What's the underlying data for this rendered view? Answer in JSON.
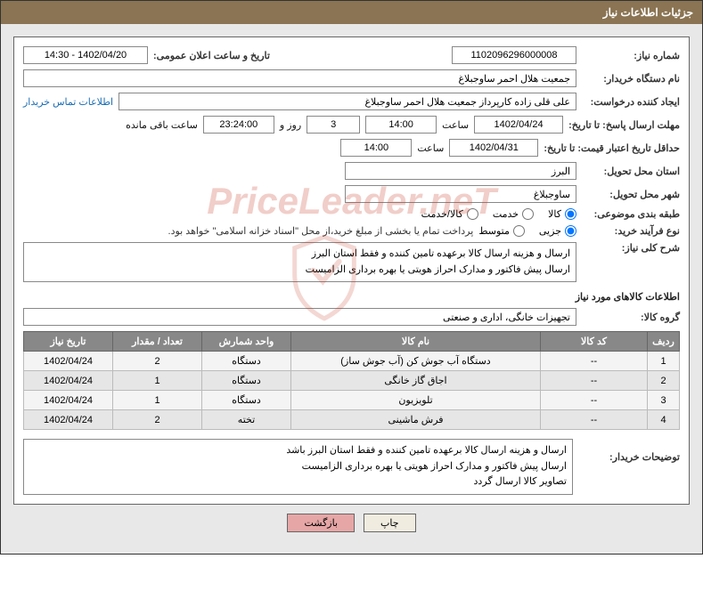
{
  "header": {
    "title": "جزئیات اطلاعات نیاز"
  },
  "need_number": {
    "label": "شماره نیاز:",
    "value": "1102096296000008"
  },
  "announce": {
    "label": "تاریخ و ساعت اعلان عمومی:",
    "value": "1402/04/20 - 14:30"
  },
  "buyer_org": {
    "label": "نام دستگاه خریدار:",
    "value": "جمعیت هلال احمر ساوجبلاغ"
  },
  "requester": {
    "label": "ایجاد کننده درخواست:",
    "value": "علی قلی زاده کارپرداز جمعیت هلال احمر ساوجبلاغ",
    "contact": "اطلاعات تماس خریدار"
  },
  "deadline": {
    "label": "مهلت ارسال پاسخ: تا تاریخ:",
    "date": "1402/04/24",
    "time_label": "ساعت",
    "time": "14:00",
    "days": "3",
    "days_label": "روز و",
    "remaining": "23:24:00",
    "remaining_label": "ساعت باقی مانده"
  },
  "validity": {
    "label": "حداقل تاریخ اعتبار قیمت: تا تاریخ:",
    "date": "1402/04/31",
    "time_label": "ساعت",
    "time": "14:00"
  },
  "province": {
    "label": "استان محل تحویل:",
    "value": "البرز"
  },
  "city": {
    "label": "شهر محل تحویل:",
    "value": "ساوجبلاغ"
  },
  "category": {
    "label": "طبقه بندی موضوعی:",
    "options": [
      {
        "label": "کالا",
        "checked": true
      },
      {
        "label": "خدمت",
        "checked": false
      },
      {
        "label": "کالا/خدمت",
        "checked": false
      }
    ]
  },
  "purchase_type": {
    "label": "نوع فرآیند خرید:",
    "options": [
      {
        "label": "جزیی",
        "checked": true
      },
      {
        "label": "متوسط",
        "checked": false
      }
    ],
    "note": "پرداخت تمام یا بخشی از مبلغ خرید،از محل \"اسناد خزانه اسلامی\" خواهد بود."
  },
  "summary": {
    "label": "شرح کلی نیاز:",
    "text": "ارسال و هزینه ارسال کالا برعهده تامین کننده و فقط استان البرز\nارسال پیش فاکتور و مدارک احراز هویتی یا بهره برداری الزامیست"
  },
  "goods_section": "اطلاعات کالاهای مورد نیاز",
  "goods_group": {
    "label": "گروه کالا:",
    "value": "تجهیزات خانگی، اداری و صنعتی"
  },
  "table": {
    "columns": [
      "ردیف",
      "کد کالا",
      "نام کالا",
      "واحد شمارش",
      "تعداد / مقدار",
      "تاریخ نیاز"
    ],
    "rows": [
      [
        "1",
        "--",
        "دستگاه آب جوش کن (آب جوش ساز)",
        "دستگاه",
        "2",
        "1402/04/24"
      ],
      [
        "2",
        "--",
        "اجاق گاز خانگی",
        "دستگاه",
        "1",
        "1402/04/24"
      ],
      [
        "3",
        "--",
        "تلویزیون",
        "دستگاه",
        "1",
        "1402/04/24"
      ],
      [
        "4",
        "--",
        "فرش ماشینی",
        "تخته",
        "2",
        "1402/04/24"
      ]
    ]
  },
  "buyer_notes": {
    "label": "توضیحات خریدار:",
    "text": "ارسال و هزینه ارسال کالا برعهده تامین کننده و فقط استان البرز باشد\nارسال پیش فاکتور و مدارک احراز هویتی یا بهره برداری الزامیست\nتصاویر کالا ارسال گردد"
  },
  "buttons": {
    "print": "چاپ",
    "back": "بازگشت"
  },
  "watermark": "PriceLeader.neT"
}
